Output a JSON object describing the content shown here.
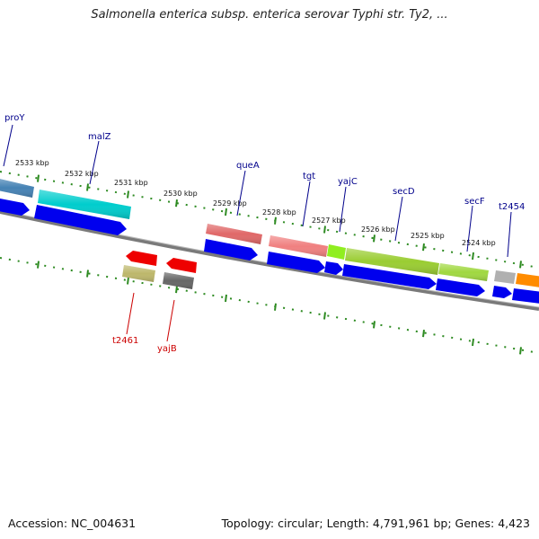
{
  "title": "Salmonella enterica subsp. enterica serovar Typhi str. Ty2, ...",
  "footer": {
    "accession": "Accession: NC_004631",
    "topology": "Topology: circular; Length: 4,791,961 bp; Genes: 4,423"
  },
  "colors": {
    "backbone": "#808080",
    "ticks": "#2e8b22",
    "cds": "#0000ee",
    "forward_label": "#00008b",
    "reverse_label": "#cc0000"
  },
  "ruler": [
    {
      "label": "2533 kbp"
    },
    {
      "label": "2532 kbp"
    },
    {
      "label": "2531 kbp"
    },
    {
      "label": "2530 kbp"
    },
    {
      "label": "2529 kbp"
    },
    {
      "label": "2528 kbp"
    },
    {
      "label": "2527 kbp"
    },
    {
      "label": "2526 kbp"
    },
    {
      "label": "2525 kbp"
    },
    {
      "label": "2524 kbp"
    }
  ],
  "genes_forward": [
    {
      "name": "proY",
      "color": "#4682b4"
    },
    {
      "name": "malZ",
      "color": "#00cdcd"
    },
    {
      "name": "queA",
      "color": "#e06868"
    },
    {
      "name": "tgt",
      "color": "#f08080"
    },
    {
      "name": "yajC",
      "color": "#90ee20"
    },
    {
      "name": "secD",
      "color": "#9acd32"
    },
    {
      "name": "secF",
      "color": "#a0d840"
    },
    {
      "name": "t2454",
      "color": "#b0b0b0"
    }
  ],
  "genes_reverse": [
    {
      "name": "t2461",
      "color": "#ee0000"
    },
    {
      "name": "yajB",
      "color": "#ee0000"
    }
  ]
}
